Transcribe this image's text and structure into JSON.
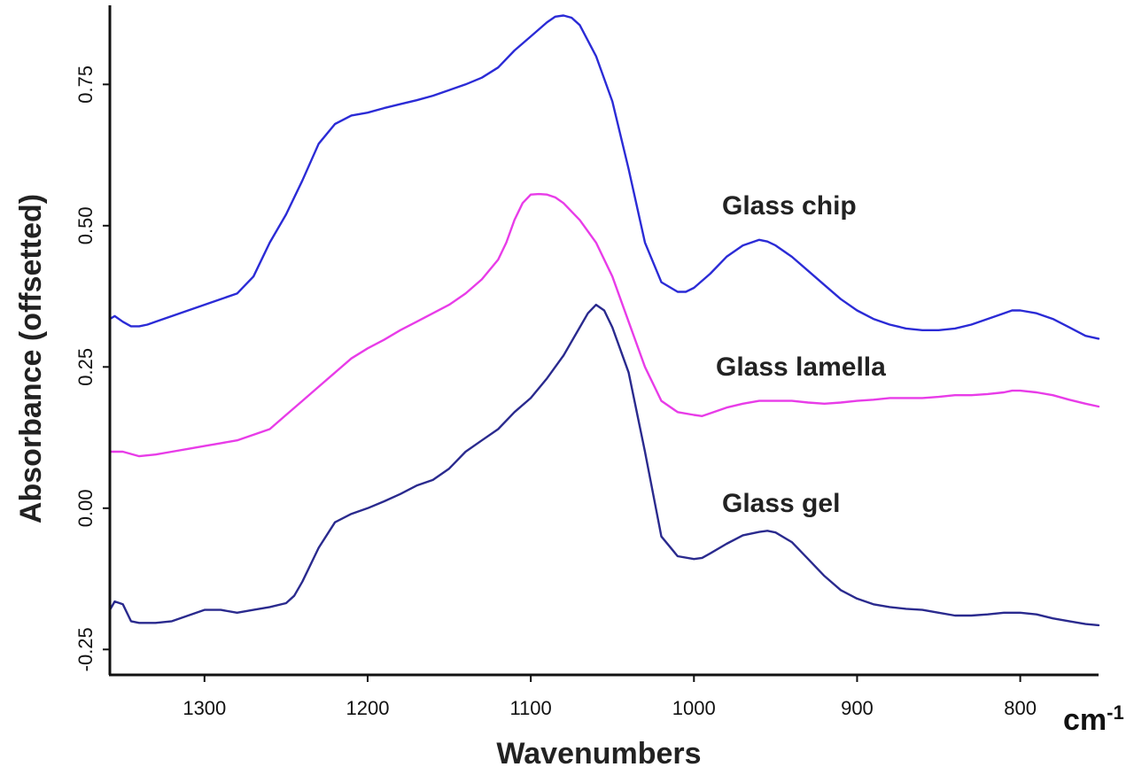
{
  "chart_data": {
    "type": "line",
    "xlabel": "Wavenumbers",
    "x_unit": "cm-1",
    "ylabel": "Absorbance (offsetted)",
    "xlim": [
      1358,
      752
    ],
    "ylim": [
      -0.295,
      0.89
    ],
    "x_reversed": true,
    "x_ticks": [
      1300,
      1200,
      1100,
      1000,
      900,
      800
    ],
    "x_tick_labels": [
      "1300",
      "1200",
      "1100",
      "1000",
      "900",
      "800"
    ],
    "y_ticks": [
      -0.25,
      0,
      0.25,
      0.5,
      0.75
    ],
    "y_tick_labels": [
      "-0.25",
      "0.00",
      "0.25",
      "0.50",
      "0.75"
    ],
    "grid": false,
    "legend": "inline labels",
    "series": [
      {
        "name": "Glass chip",
        "color": "#2b2bd6",
        "x": [
          1358,
          1355,
          1350,
          1345,
          1340,
          1335,
          1330,
          1320,
          1310,
          1300,
          1290,
          1280,
          1270,
          1260,
          1250,
          1240,
          1230,
          1220,
          1210,
          1200,
          1190,
          1180,
          1170,
          1160,
          1150,
          1140,
          1130,
          1120,
          1110,
          1100,
          1090,
          1085,
          1080,
          1075,
          1070,
          1060,
          1050,
          1040,
          1030,
          1020,
          1010,
          1005,
          1000,
          990,
          980,
          970,
          960,
          955,
          950,
          940,
          930,
          920,
          910,
          900,
          890,
          880,
          870,
          860,
          850,
          840,
          830,
          820,
          810,
          805,
          800,
          790,
          780,
          770,
          760,
          752
        ],
        "y": [
          0.335,
          0.34,
          0.33,
          0.322,
          0.322,
          0.325,
          0.33,
          0.34,
          0.35,
          0.36,
          0.37,
          0.38,
          0.41,
          0.47,
          0.52,
          0.58,
          0.645,
          0.68,
          0.695,
          0.7,
          0.708,
          0.715,
          0.722,
          0.73,
          0.74,
          0.75,
          0.762,
          0.78,
          0.81,
          0.835,
          0.86,
          0.87,
          0.872,
          0.868,
          0.855,
          0.8,
          0.72,
          0.6,
          0.47,
          0.4,
          0.383,
          0.383,
          0.39,
          0.415,
          0.445,
          0.465,
          0.475,
          0.472,
          0.465,
          0.445,
          0.42,
          0.395,
          0.37,
          0.35,
          0.335,
          0.325,
          0.318,
          0.315,
          0.315,
          0.318,
          0.325,
          0.335,
          0.345,
          0.35,
          0.35,
          0.345,
          0.335,
          0.32,
          0.305,
          0.3
        ]
      },
      {
        "name": "Glass lamella",
        "color": "#e83ce8",
        "x": [
          1358,
          1350,
          1340,
          1330,
          1320,
          1310,
          1300,
          1290,
          1280,
          1270,
          1260,
          1250,
          1240,
          1230,
          1220,
          1210,
          1200,
          1190,
          1180,
          1170,
          1160,
          1150,
          1140,
          1130,
          1120,
          1115,
          1110,
          1105,
          1100,
          1095,
          1090,
          1085,
          1080,
          1070,
          1060,
          1050,
          1040,
          1030,
          1020,
          1010,
          1000,
          995,
          990,
          980,
          970,
          960,
          950,
          940,
          930,
          920,
          910,
          900,
          890,
          880,
          870,
          860,
          850,
          840,
          830,
          820,
          810,
          805,
          800,
          790,
          780,
          770,
          760,
          752
        ],
        "y": [
          0.1,
          0.1,
          0.092,
          0.095,
          0.1,
          0.105,
          0.11,
          0.115,
          0.12,
          0.13,
          0.14,
          0.165,
          0.19,
          0.215,
          0.24,
          0.265,
          0.283,
          0.298,
          0.315,
          0.33,
          0.345,
          0.36,
          0.38,
          0.405,
          0.44,
          0.47,
          0.51,
          0.54,
          0.555,
          0.556,
          0.555,
          0.55,
          0.54,
          0.51,
          0.47,
          0.41,
          0.33,
          0.25,
          0.19,
          0.17,
          0.165,
          0.163,
          0.168,
          0.178,
          0.185,
          0.19,
          0.19,
          0.19,
          0.187,
          0.185,
          0.187,
          0.19,
          0.192,
          0.195,
          0.195,
          0.195,
          0.197,
          0.2,
          0.2,
          0.202,
          0.205,
          0.208,
          0.208,
          0.205,
          0.2,
          0.192,
          0.185,
          0.18
        ]
      },
      {
        "name": "Glass gel",
        "color": "#2a2a8e",
        "x": [
          1358,
          1355,
          1350,
          1345,
          1340,
          1330,
          1320,
          1310,
          1300,
          1290,
          1280,
          1270,
          1260,
          1250,
          1245,
          1240,
          1230,
          1220,
          1210,
          1200,
          1190,
          1180,
          1170,
          1160,
          1150,
          1140,
          1130,
          1120,
          1110,
          1100,
          1090,
          1080,
          1070,
          1065,
          1060,
          1055,
          1050,
          1040,
          1030,
          1020,
          1010,
          1000,
          995,
          990,
          980,
          970,
          960,
          955,
          950,
          940,
          930,
          920,
          910,
          900,
          890,
          880,
          870,
          860,
          850,
          840,
          830,
          820,
          810,
          800,
          790,
          780,
          770,
          760,
          752
        ],
        "y": [
          -0.18,
          -0.165,
          -0.17,
          -0.2,
          -0.203,
          -0.203,
          -0.2,
          -0.19,
          -0.18,
          -0.18,
          -0.185,
          -0.18,
          -0.175,
          -0.168,
          -0.155,
          -0.13,
          -0.07,
          -0.025,
          -0.01,
          0.0,
          0.012,
          0.025,
          0.04,
          0.05,
          0.07,
          0.1,
          0.12,
          0.14,
          0.17,
          0.195,
          0.23,
          0.27,
          0.32,
          0.345,
          0.36,
          0.35,
          0.32,
          0.24,
          0.1,
          -0.05,
          -0.085,
          -0.09,
          -0.088,
          -0.08,
          -0.063,
          -0.048,
          -0.042,
          -0.04,
          -0.043,
          -0.06,
          -0.09,
          -0.12,
          -0.145,
          -0.16,
          -0.17,
          -0.175,
          -0.178,
          -0.18,
          -0.185,
          -0.19,
          -0.19,
          -0.188,
          -0.185,
          -0.185,
          -0.188,
          -0.195,
          -0.2,
          -0.205,
          -0.207
        ]
      }
    ],
    "annotations": [
      {
        "text": "Glass chip",
        "series": "Glass chip"
      },
      {
        "text": "Glass lamella",
        "series": "Glass lamella"
      },
      {
        "text": "Glass gel",
        "series": "Glass gel"
      }
    ]
  }
}
